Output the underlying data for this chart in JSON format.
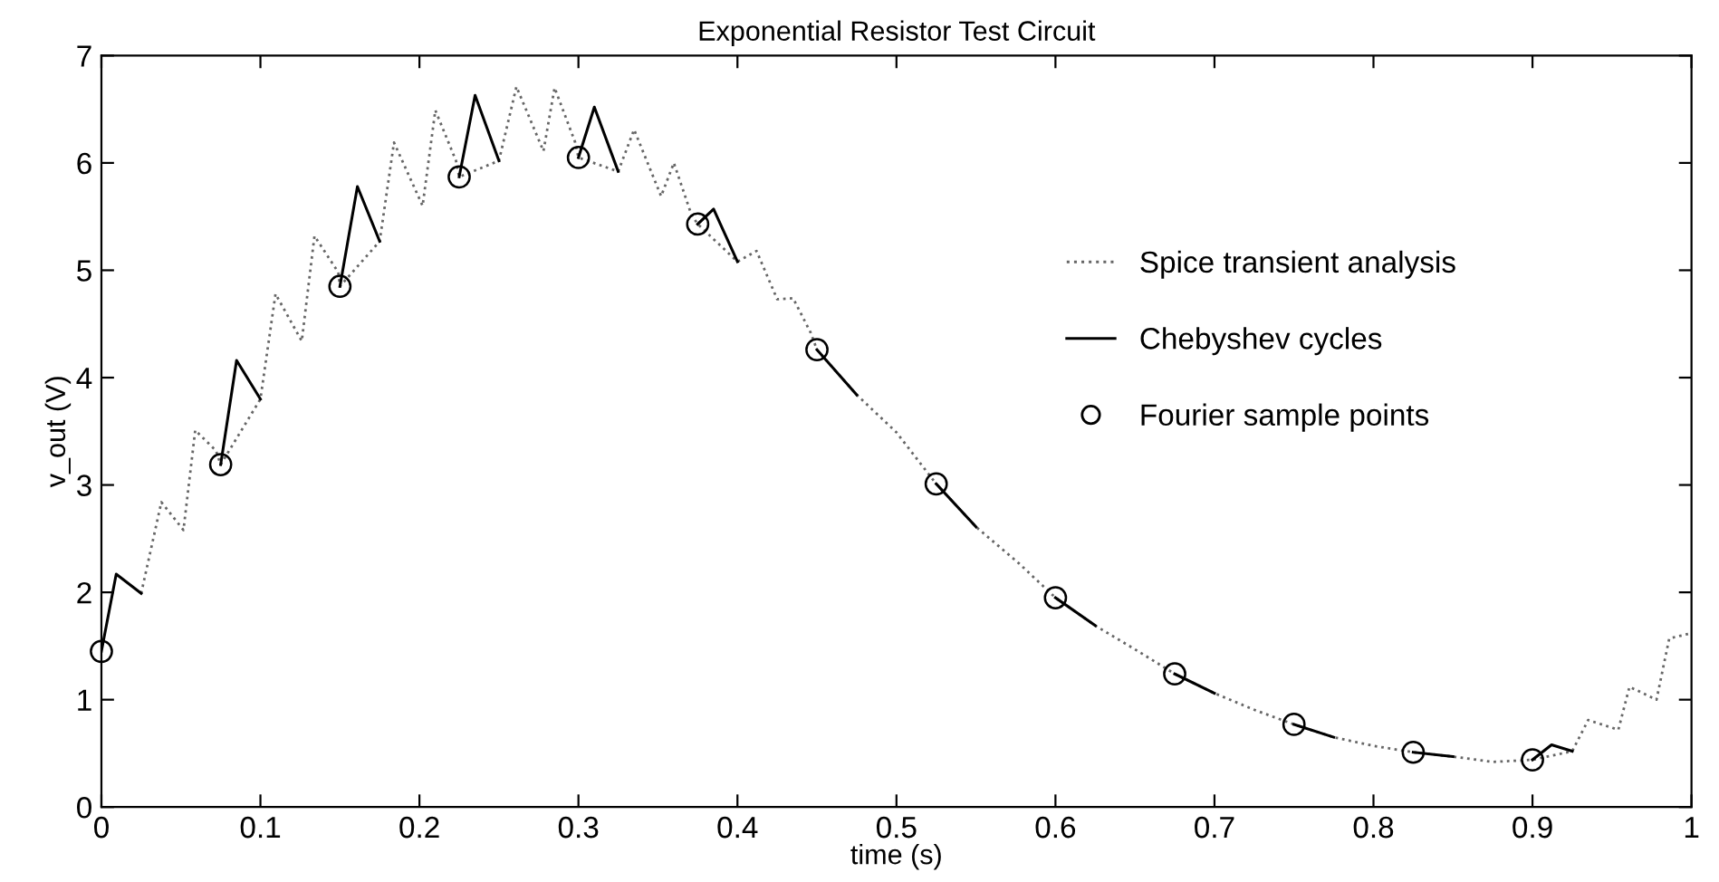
{
  "chart_data": {
    "type": "line",
    "title": "Exponential Resistor Test Circuit",
    "xlabel": "time (s)",
    "ylabel": "v_out (V)",
    "xlim": [
      0,
      1
    ],
    "xticks": [
      0,
      0.1,
      0.2,
      0.3,
      0.4,
      0.5,
      0.6,
      0.7,
      0.8,
      0.9,
      1
    ],
    "ylim": [
      0,
      7
    ],
    "yticks": [
      0,
      1,
      2,
      3,
      4,
      5,
      6,
      7
    ],
    "grid": false,
    "legend": "right",
    "series": [
      {
        "name": "Spice transient analysis",
        "color": "#666666",
        "line_style": "dotted",
        "marker": "none",
        "x": [
          0.025,
          0.0377,
          0.0516,
          0.059,
          0.072,
          0.075,
          0.1,
          0.1095,
          0.126,
          0.134,
          0.149,
          0.15,
          0.175,
          0.184,
          0.202,
          0.21,
          0.223,
          0.225,
          0.25,
          0.261,
          0.278,
          0.285,
          0.298,
          0.3,
          0.325,
          0.335,
          0.352,
          0.36,
          0.371,
          0.375,
          0.4,
          0.412,
          0.425,
          0.435,
          0.446,
          0.45,
          0.475,
          0.5,
          0.525,
          0.55,
          0.577,
          0.6,
          0.625,
          0.651,
          0.675,
          0.7,
          0.726,
          0.75,
          0.775,
          0.8,
          0.825,
          0.85,
          0.875,
          0.9,
          0.925,
          0.935,
          0.954,
          0.961,
          0.978,
          0.986,
          1.0
        ],
        "values": [
          1.99,
          2.84,
          2.58,
          3.51,
          3.32,
          3.19,
          3.8,
          4.78,
          4.34,
          5.32,
          4.98,
          4.85,
          5.27,
          6.19,
          5.6,
          6.49,
          6.02,
          5.87,
          6.02,
          6.71,
          6.11,
          6.7,
          6.19,
          6.05,
          5.92,
          6.31,
          5.69,
          6.0,
          5.52,
          5.43,
          5.08,
          5.18,
          4.73,
          4.74,
          4.42,
          4.26,
          3.84,
          3.49,
          3.01,
          2.61,
          2.27,
          1.95,
          1.69,
          1.46,
          1.24,
          1.06,
          0.9,
          0.77,
          0.65,
          0.57,
          0.51,
          0.47,
          0.42,
          0.44,
          0.52,
          0.81,
          0.72,
          1.12,
          1.0,
          1.57,
          1.62
        ]
      },
      {
        "name": "Chebyshev cycles",
        "color": "#000000",
        "line_style": "solid",
        "marker": "none",
        "x": [
          0,
          0.0093,
          0.025,
          0.05,
          0.075,
          0.085,
          0.1,
          0.125,
          0.15,
          0.161,
          0.175,
          0.2,
          0.225,
          0.235,
          0.25,
          0.275,
          0.3,
          0.31,
          0.325,
          0.35,
          0.375,
          0.385,
          0.4,
          0.425,
          0.45,
          0.475,
          0.5,
          0.525,
          0.55,
          0.575,
          0.6,
          0.625,
          0.65,
          0.675,
          0.7,
          0.725,
          0.75,
          0.775,
          0.8,
          0.825,
          0.85,
          0.875,
          0.9,
          0.912,
          0.925
        ],
        "values": [
          1.45,
          2.17,
          1.99,
          null,
          3.19,
          4.16,
          3.8,
          null,
          4.85,
          5.78,
          5.27,
          null,
          5.87,
          6.63,
          6.02,
          null,
          6.05,
          6.52,
          5.92,
          null,
          5.43,
          5.57,
          5.08,
          null,
          4.26,
          3.84,
          null,
          3.01,
          2.61,
          null,
          1.95,
          1.69,
          null,
          1.24,
          1.06,
          null,
          0.77,
          0.65,
          null,
          0.51,
          0.47,
          null,
          0.44,
          0.58,
          0.52
        ]
      },
      {
        "name": "Fourier sample points",
        "type": "scatter",
        "color": "#000000",
        "marker": "circle",
        "x": [
          0,
          0.075,
          0.15,
          0.225,
          0.3,
          0.375,
          0.45,
          0.525,
          0.6,
          0.675,
          0.75,
          0.825,
          0.9
        ],
        "values": [
          1.45,
          3.19,
          4.85,
          5.87,
          6.05,
          5.43,
          4.26,
          3.01,
          1.95,
          1.24,
          0.77,
          0.51,
          0.44
        ]
      }
    ]
  }
}
